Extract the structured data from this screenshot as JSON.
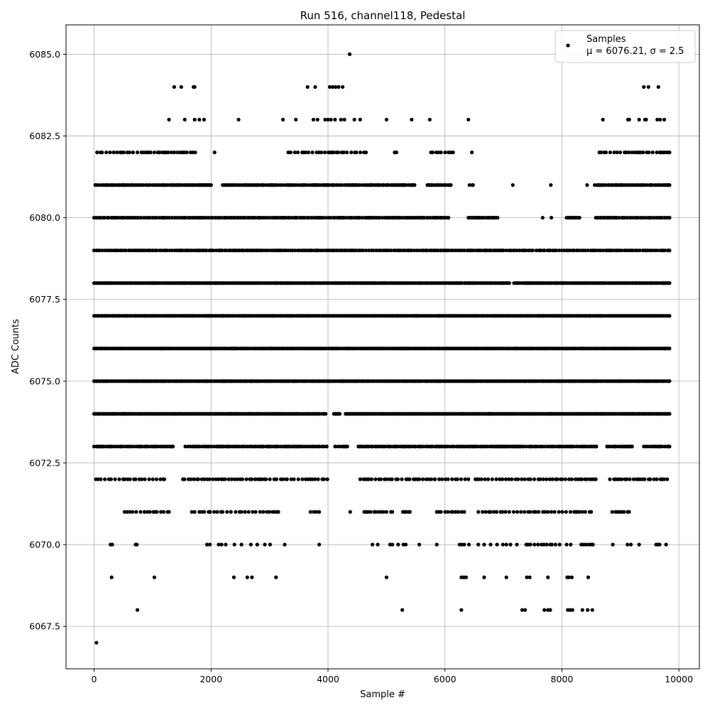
{
  "chart_data": {
    "type": "scatter",
    "title": "Run 516, channel118, Pedestal",
    "xlabel": "Sample #",
    "ylabel": "ADC Counts",
    "xlim": [
      -480,
      10350
    ],
    "ylim": [
      6066.2,
      6085.9
    ],
    "x_ticks": [
      0,
      2000,
      4000,
      6000,
      8000,
      10000
    ],
    "x_tick_labels": [
      "0",
      "2000",
      "4000",
      "6000",
      "8000",
      "10000"
    ],
    "y_ticks": [
      6067.5,
      6070.0,
      6072.5,
      6075.0,
      6077.5,
      6080.0,
      6082.5,
      6085.0
    ],
    "y_tick_labels": [
      "6067.5",
      "6070.0",
      "6072.5",
      "6075.0",
      "6077.5",
      "6080.0",
      "6082.5",
      "6085.0"
    ],
    "grid": true,
    "legend": {
      "position": "top-right",
      "entries": [
        {
          "label": "Samples",
          "sublabel": "μ = 6076.21, σ = 2.5",
          "color": "#000000"
        }
      ]
    },
    "series": [
      {
        "name": "Samples",
        "color": "#000000",
        "x_max": 9840,
        "levels": [
          {
            "y": 6085,
            "density": "isolated",
            "x": [
              4370
            ]
          },
          {
            "y": 6084,
            "density": "sparse",
            "x": [
              1370,
              1490,
              1700,
              1720,
              3650,
              3780,
              4030,
              4080,
              4130,
              4180,
              4250,
              9400,
              9480,
              9650
            ]
          },
          {
            "y": 6083,
            "density": "sparse",
            "x": [
              1280,
              1550,
              1720,
              1800,
              1880,
              2470,
              3230,
              3450,
              3750,
              3820,
              3950,
              4000,
              4050,
              4120,
              4220,
              4280,
              4450,
              4550,
              5000,
              5430,
              5740,
              6400,
              8700,
              9130,
              9150,
              9320,
              9420,
              9440,
              9630,
              9680,
              9750
            ]
          },
          {
            "y": 6082,
            "density": "moderate",
            "x_ranges": [
              [
                50,
                1730
              ],
              [
                2060,
                2060
              ],
              [
                3320,
                4650
              ],
              [
                5140,
                5170
              ],
              [
                5760,
                6140
              ],
              [
                6460,
                6460
              ],
              [
                8640,
                9840
              ]
            ]
          },
          {
            "y": 6081,
            "density": "dense",
            "x_ranges": [
              [
                20,
                2000
              ],
              [
                2200,
                5480
              ],
              [
                5700,
                6100
              ],
              [
                6420,
                6480
              ],
              [
                7160,
                7160
              ],
              [
                7810,
                7810
              ],
              [
                8430,
                8430
              ],
              [
                8560,
                9840
              ]
            ]
          },
          {
            "y": 6080,
            "density": "dense",
            "x_ranges": [
              [
                0,
                6060
              ],
              [
                6400,
                6900
              ],
              [
                7670,
                7670
              ],
              [
                7820,
                7820
              ],
              [
                8080,
                8300
              ],
              [
                8580,
                9840
              ]
            ]
          },
          {
            "y": 6079,
            "density": "dense",
            "x_ranges": [
              [
                0,
                6330
              ],
              [
                6380,
                7500
              ],
              [
                7560,
                7700
              ],
              [
                7750,
                7900
              ],
              [
                7950,
                9840
              ]
            ]
          },
          {
            "y": 6078,
            "density": "full",
            "x_ranges": [
              [
                0,
                6290
              ],
              [
                6330,
                7100
              ],
              [
                7180,
                9840
              ]
            ]
          },
          {
            "y": 6077,
            "density": "full",
            "x_ranges": [
              [
                0,
                9840
              ]
            ]
          },
          {
            "y": 6076,
            "density": "full",
            "x_ranges": [
              [
                0,
                9840
              ]
            ]
          },
          {
            "y": 6075,
            "density": "full",
            "x_ranges": [
              [
                0,
                9840
              ]
            ]
          },
          {
            "y": 6074,
            "density": "full",
            "x_ranges": [
              [
                0,
                3850
              ],
              [
                3890,
                3960
              ],
              [
                4100,
                4200
              ],
              [
                4300,
                9840
              ]
            ]
          },
          {
            "y": 6073,
            "density": "dense",
            "x_ranges": [
              [
                0,
                1350
              ],
              [
                1560,
                3980
              ],
              [
                4120,
                4330
              ],
              [
                4520,
                8590
              ],
              [
                8770,
                9200
              ],
              [
                9400,
                9840
              ]
            ]
          },
          {
            "y": 6072,
            "density": "moderate",
            "x_ranges": [
              [
                30,
                1200
              ],
              [
                1520,
                3300
              ],
              [
                3370,
                3990
              ],
              [
                4550,
                5830
              ],
              [
                5900,
                6400
              ],
              [
                6520,
                8580
              ],
              [
                8820,
                9800
              ]
            ]
          },
          {
            "y": 6071,
            "density": "moderate",
            "x_ranges": [
              [
                520,
                1280
              ],
              [
                1670,
                1720
              ],
              [
                1800,
                2340
              ],
              [
                2420,
                3150
              ],
              [
                3700,
                3850
              ],
              [
                4380,
                4380
              ],
              [
                4620,
                5100
              ],
              [
                5280,
                5400
              ],
              [
                5860,
                6330
              ],
              [
                6570,
                8500
              ],
              [
                8860,
                9150
              ]
            ]
          },
          {
            "y": 6070,
            "density": "sparse",
            "x": [
              280,
              310,
              710,
              730,
              1930,
              1980,
              2130,
              2180,
              2250,
              2400,
              2520,
              2680,
              2790,
              2920,
              3010,
              3260,
              3850,
              4760,
              4850,
              5060,
              5100,
              5200,
              5290,
              5330,
              5560,
              5860,
              6250,
              6290,
              6330,
              6410,
              6570,
              6670,
              6780,
              6890,
              6990,
              7050,
              7120,
              7230,
              7390,
              7420,
              7460,
              7530,
              7590,
              7650,
              7690,
              7740,
              7800,
              7830,
              7890,
              7960,
              8080,
              8150,
              8330,
              8370,
              8410,
              8460,
              8500,
              8530,
              8870,
              9120,
              9180,
              9320,
              9610,
              9640,
              9670,
              9780
            ]
          },
          {
            "y": 6069,
            "density": "sparse",
            "x": [
              300,
              1030,
              2390,
              2620,
              2700,
              3110,
              5000,
              6280,
              6320,
              6360,
              6670,
              7050,
              7400,
              7450,
              7760,
              8090,
              8120,
              8170,
              8450
            ]
          },
          {
            "y": 6068,
            "density": "sparse",
            "x": [
              740,
              5270,
              6280,
              7320,
              7370,
              7700,
              7760,
              7800,
              8100,
              8140,
              8180,
              8350,
              8440,
              8520
            ]
          },
          {
            "y": 6067,
            "density": "isolated",
            "x": [
              40
            ]
          }
        ]
      }
    ]
  }
}
